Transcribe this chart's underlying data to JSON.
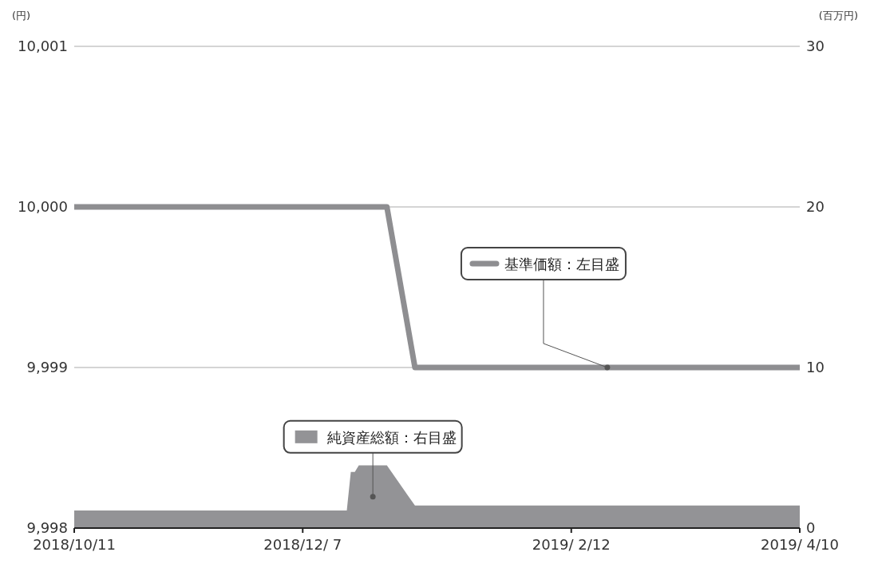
{
  "chart_data": {
    "type": "line",
    "ylabel": "(円)",
    "y2label": "(百万円)",
    "xlim": [
      "2018-10-11",
      "2019-04-10"
    ],
    "xticks": [
      {
        "value": "2018-10-11",
        "label": "2018/10/11"
      },
      {
        "value": "2018-12-07",
        "label": "2018/12/ 7"
      },
      {
        "value": "2019-02-12",
        "label": "2019/ 2/12"
      },
      {
        "value": "2019-04-10",
        "label": "2019/ 4/10"
      }
    ],
    "ylim": [
      9998,
      10001
    ],
    "yticks": [
      {
        "value": 9998,
        "label": "9,998"
      },
      {
        "value": 9999,
        "label": "9,999"
      },
      {
        "value": 10000,
        "label": "10,000"
      },
      {
        "value": 10001,
        "label": "10,001"
      }
    ],
    "y2lim": [
      0,
      30
    ],
    "y2ticks": [
      0,
      10,
      20,
      30
    ],
    "grid": "y",
    "legend": "right",
    "series": [
      {
        "name": "基準価額：左目盛",
        "color": "#8e8e91",
        "x": [
          "2018-10-11",
          "2018-12-28",
          "2019-01-04",
          "2019-04-10"
        ],
        "values": [
          10000,
          10000,
          9999,
          9999
        ]
      },
      {
        "name": "純資産総額：右目盛",
        "type": "area",
        "axis": "y2",
        "color": "#939396",
        "x": [
          "2018-10-11",
          "2018-12-18",
          "2018-12-19",
          "2018-12-20",
          "2018-12-21",
          "2018-12-28",
          "2019-01-04",
          "2019-04-10"
        ],
        "values": [
          1.1,
          1.1,
          3.5,
          3.5,
          3.9,
          3.9,
          1.4,
          1.4
        ]
      }
    ]
  }
}
